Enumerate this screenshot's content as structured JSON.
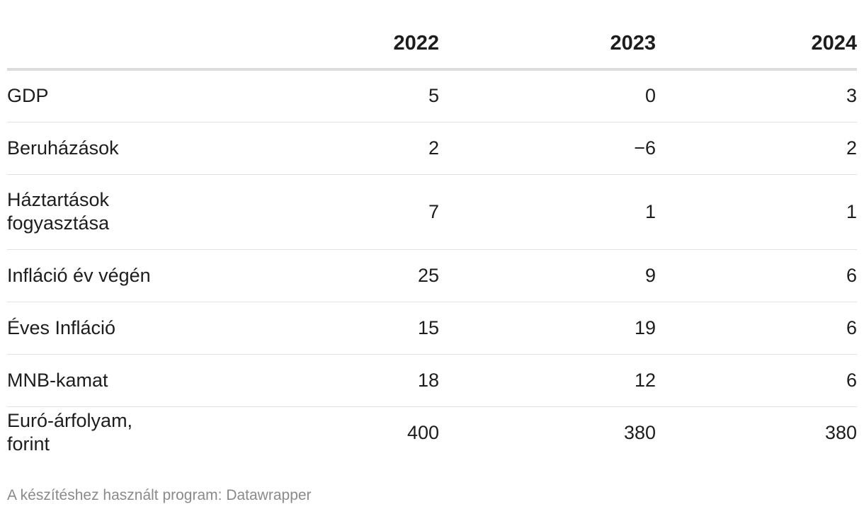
{
  "chart_data": {
    "type": "table",
    "columns": [
      "",
      "2022",
      "2023",
      "2024"
    ],
    "rows": [
      {
        "label": "GDP",
        "values": [
          "5",
          "0",
          "3"
        ]
      },
      {
        "label": "Beruházások",
        "values": [
          "2",
          "−6",
          "2"
        ]
      },
      {
        "label": "Háztartások fogyasztása",
        "values": [
          "7",
          "1",
          "1"
        ]
      },
      {
        "label": "Infláció év végén",
        "values": [
          "25",
          "9",
          "6"
        ]
      },
      {
        "label": "Éves Infláció",
        "values": [
          "15",
          "19",
          "6"
        ]
      },
      {
        "label": "MNB-kamat",
        "values": [
          "18",
          "12",
          "6"
        ]
      },
      {
        "label": "Euró-árfolyam, forint",
        "values": [
          "400",
          "380",
          "380"
        ]
      }
    ]
  },
  "footer": {
    "text": "A készítéshez használt program: Datawrapper"
  }
}
